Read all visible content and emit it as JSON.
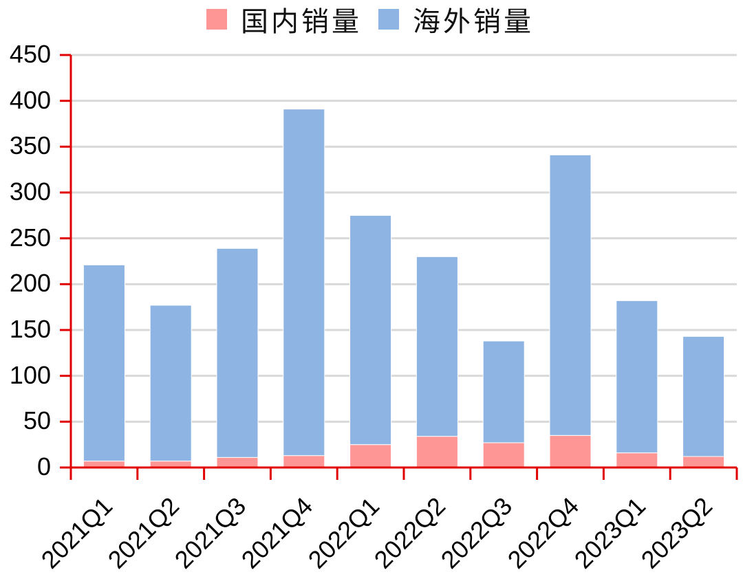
{
  "legend": {
    "items": [
      {
        "label": "国内销量",
        "color": "#FF9696"
      },
      {
        "label": "海外销量",
        "color": "#8EB4E3"
      }
    ]
  },
  "axes": {
    "y_ticks": [
      "0",
      "50",
      "100",
      "150",
      "200",
      "250",
      "300",
      "350",
      "400",
      "450"
    ],
    "x_ticks": [
      "2021Q1",
      "2021Q2",
      "2021Q3",
      "2021Q4",
      "2022Q1",
      "2022Q2",
      "2022Q3",
      "2022Q4",
      "2023Q1",
      "2023Q2"
    ],
    "axis_color": "#E00000",
    "grid_color": "#D9D9D9"
  },
  "chart_data": {
    "type": "bar",
    "stacked": true,
    "title": "",
    "xlabel": "",
    "ylabel": "",
    "ylim": [
      0,
      450
    ],
    "ytick_step": 50,
    "grid": true,
    "legend_position": "top",
    "categories": [
      "2021Q1",
      "2021Q2",
      "2021Q3",
      "2021Q4",
      "2022Q1",
      "2022Q2",
      "2022Q3",
      "2022Q4",
      "2023Q1",
      "2023Q2"
    ],
    "series": [
      {
        "name": "国内销量",
        "color": "#FF9696",
        "values": [
          7,
          7,
          11,
          13,
          25,
          34,
          27,
          35,
          16,
          12
        ]
      },
      {
        "name": "海外销量",
        "color": "#8EB4E3",
        "values": [
          214,
          170,
          228,
          378,
          250,
          196,
          111,
          306,
          166,
          131
        ]
      }
    ],
    "totals": [
      221,
      177,
      239,
      391,
      275,
      230,
      138,
      341,
      182,
      143
    ]
  }
}
